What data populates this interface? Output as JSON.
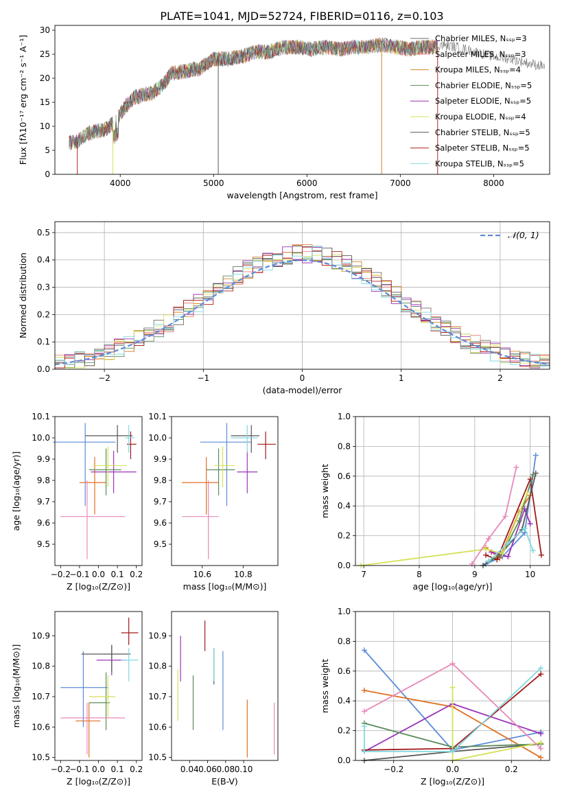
{
  "title": "PLATE=1041, MJD=52724, FIBERID=0116, z=0.103",
  "legend": [
    {
      "label": "Chabrier MILES, Nₛₛₚ=3",
      "color": "#6e6e6e"
    },
    {
      "label": "Salpeter MILES, Nₛₛₚ=3",
      "color": "#f08080"
    },
    {
      "label": "Kroupa MILES, Nₛₛₚ=4",
      "color": "#d2862a"
    },
    {
      "label": "Chabrier ELODIE, Nₛₛₚ=5",
      "color": "#5a8a5a"
    },
    {
      "label": "Salpeter ELODIE, Nₛₛₚ=5",
      "color": "#9b30b0"
    },
    {
      "label": "Kroupa ELODIE, Nₛₛₚ=4",
      "color": "#d4e157"
    },
    {
      "label": "Chabrier STELIB, Nₛₛₚ=5",
      "color": "#555555"
    },
    {
      "label": "Salpeter STELIB, Nₛₛₚ=5",
      "color": "#b22222"
    },
    {
      "label": "Kroupa STELIB, Nₛₛₚ=5",
      "color": "#80d8e0"
    }
  ],
  "panel_colors": [
    "#5b8bd9",
    "#e07020",
    "#9933bb",
    "#a01818",
    "#555555",
    "#5a8a5a",
    "#d4e157",
    "#e888b8",
    "#80d8e0"
  ],
  "chart_data": [
    {
      "id": "spectrum",
      "type": "line",
      "xlabel": "wavelength [Angstrom, rest frame]",
      "ylabel": "Flux [fλ10⁻¹⁷ erg cm⁻² s⁻¹ A⁻¹]",
      "xlim": [
        3300,
        8600
      ],
      "ylim": [
        0,
        31
      ],
      "xticks": [
        4000,
        5000,
        6000,
        7000,
        8000
      ],
      "yticks": [
        0,
        5,
        10,
        15,
        20,
        25,
        30
      ],
      "x": [
        3450,
        3550,
        3650,
        3750,
        3850,
        3950,
        4050,
        4150,
        4250,
        4350,
        4450,
        4550,
        4700,
        4850,
        5000,
        5150,
        5300,
        5450,
        5600,
        5750,
        5900,
        6050,
        6200,
        6350,
        6500,
        6650,
        6800,
        6950,
        7100,
        7250,
        7400
      ],
      "y": [
        6.5,
        7.0,
        8.5,
        9.0,
        9.5,
        11.0,
        14.0,
        16.0,
        16.5,
        17.0,
        18.5,
        21.0,
        21.5,
        22.0,
        24.0,
        24.0,
        24.5,
        25.5,
        25.5,
        26.5,
        26.5,
        26.0,
        26.5,
        26.0,
        26.5,
        26.5,
        27.0,
        26.5,
        26.0,
        26.5,
        26.5
      ],
      "grey_tail": {
        "x": [
          7400,
          7600,
          7800,
          8000,
          8200,
          8400,
          8550
        ],
        "y": [
          27.0,
          26.5,
          25.5,
          24.5,
          24.0,
          23.0,
          22.5
        ]
      }
    },
    {
      "id": "residual-histogram",
      "type": "bar",
      "xlabel": "(data-model)/error",
      "ylabel": "Normed distribution",
      "xlim": [
        -2.5,
        2.5
      ],
      "ylim": [
        0,
        0.54
      ],
      "xticks": [
        -2,
        -1,
        0,
        1,
        2
      ],
      "yticks": [
        0.0,
        0.1,
        0.2,
        0.3,
        0.4,
        0.5
      ],
      "bin_width": 0.1,
      "curve_label": "𝒩(0, 1)"
    },
    {
      "id": "age-vs-Z",
      "type": "scatter",
      "xlabel": "Z [log₁₀(Z/Z⊙)]",
      "ylabel": "age  [log₁₀(age/yr)]",
      "xlim": [
        -0.23,
        0.23
      ],
      "ylim": [
        9.4,
        10.1
      ],
      "xticks": [
        -0.2,
        -0.1,
        0.0,
        0.1,
        0.2
      ],
      "yticks": [
        9.5,
        9.6,
        9.7,
        9.8,
        9.9,
        10.0,
        10.1
      ],
      "points": [
        {
          "x": -0.07,
          "y": 9.98,
          "xerr": [
            0.17,
            0.16
          ],
          "yerr": [
            0.3,
            0.09
          ],
          "c": 0
        },
        {
          "x": -0.02,
          "y": 9.79,
          "xerr": [
            0.08,
            0.06
          ],
          "yerr": [
            0.15,
            0.12
          ],
          "c": 1
        },
        {
          "x": 0.08,
          "y": 9.84,
          "xerr": [
            0.12,
            0.12
          ],
          "yerr": [
            0.1,
            0.1
          ],
          "c": 2
        },
        {
          "x": 0.17,
          "y": 9.97,
          "xerr": [
            0.02,
            0.03
          ],
          "yerr": [
            0.07,
            0.06
          ],
          "c": 3
        },
        {
          "x": 0.1,
          "y": 10.01,
          "xerr": [
            0.17,
            0.08
          ],
          "yerr": [
            0.08,
            0.05
          ],
          "c": 4
        },
        {
          "x": 0.04,
          "y": 9.85,
          "xerr": [
            0.09,
            0.08
          ],
          "yerr": [
            0.12,
            0.1
          ],
          "c": 5
        },
        {
          "x": 0.05,
          "y": 9.87,
          "xerr": [
            0.08,
            0.1
          ],
          "yerr": [
            0.1,
            0.09
          ],
          "c": 6
        },
        {
          "x": -0.06,
          "y": 9.63,
          "xerr": [
            0.14,
            0.2
          ],
          "yerr": [
            0.2,
            0.17
          ],
          "c": 7
        },
        {
          "x": 0.16,
          "y": 10.0,
          "xerr": [
            0.02,
            0.03
          ],
          "yerr": [
            0.07,
            0.06
          ],
          "c": 8
        }
      ]
    },
    {
      "id": "age-vs-mass",
      "type": "scatter",
      "xlabel": "mass [log₁₀(M/M⊙)]",
      "ylabel": "",
      "xlim": [
        10.45,
        10.97
      ],
      "ylim": [
        9.4,
        10.1
      ],
      "xticks": [
        10.6,
        10.8
      ],
      "yticks": [
        9.5,
        9.6,
        9.7,
        9.8,
        9.9,
        10.0,
        10.1
      ],
      "points": [
        {
          "x": 10.72,
          "y": 9.98,
          "xerr": [
            0.13,
            0.12
          ],
          "yerr": [
            0.3,
            0.09
          ],
          "c": 0
        },
        {
          "x": 10.62,
          "y": 9.79,
          "xerr": [
            0.12,
            0.06
          ],
          "yerr": [
            0.15,
            0.12
          ],
          "c": 1
        },
        {
          "x": 10.82,
          "y": 9.84,
          "xerr": [
            0.05,
            0.05
          ],
          "yerr": [
            0.1,
            0.1
          ],
          "c": 2
        },
        {
          "x": 10.91,
          "y": 9.97,
          "xerr": [
            0.04,
            0.05
          ],
          "yerr": [
            0.07,
            0.06
          ],
          "c": 3
        },
        {
          "x": 10.84,
          "y": 10.01,
          "xerr": [
            0.1,
            0.04
          ],
          "yerr": [
            0.08,
            0.05
          ],
          "c": 4
        },
        {
          "x": 10.68,
          "y": 9.85,
          "xerr": [
            0.06,
            0.08
          ],
          "yerr": [
            0.12,
            0.1
          ],
          "c": 5
        },
        {
          "x": 10.7,
          "y": 9.87,
          "xerr": [
            0.04,
            0.06
          ],
          "yerr": [
            0.1,
            0.09
          ],
          "c": 6
        },
        {
          "x": 10.63,
          "y": 9.63,
          "xerr": [
            0.13,
            0.05
          ],
          "yerr": [
            0.2,
            0.17
          ],
          "c": 7
        },
        {
          "x": 10.82,
          "y": 10.0,
          "xerr": [
            0.08,
            0.05
          ],
          "yerr": [
            0.07,
            0.06
          ],
          "c": 8
        }
      ]
    },
    {
      "id": "mass-weight-vs-age",
      "type": "line",
      "xlabel": "age  [log₁₀(age/yr)]",
      "ylabel": "mass weight",
      "xlim": [
        6.85,
        10.35
      ],
      "ylim": [
        0,
        1.0
      ],
      "xticks": [
        7,
        8,
        9,
        10
      ],
      "yticks": [
        0.0,
        0.2,
        0.4,
        0.6,
        0.8,
        1.0
      ],
      "series": [
        {
          "c": 0,
          "x": [
            9.2,
            9.5,
            9.9,
            10.1
          ],
          "y": [
            0.01,
            0.06,
            0.22,
            0.74
          ]
        },
        {
          "c": 1,
          "x": [
            9.2,
            9.45,
            9.8,
            10.0
          ],
          "y": [
            0.12,
            0.05,
            0.36,
            0.47
          ]
        },
        {
          "c": 2,
          "x": [
            9.3,
            9.6,
            9.9,
            10.0
          ],
          "y": [
            0.09,
            0.06,
            0.38,
            0.28
          ]
        },
        {
          "c": 3,
          "x": [
            9.2,
            9.4,
            10.0,
            10.2
          ],
          "y": [
            0.07,
            0.04,
            0.58,
            0.07
          ]
        },
        {
          "c": 4,
          "x": [
            9.15,
            9.45,
            9.85,
            10.1
          ],
          "y": [
            0.0,
            0.07,
            0.24,
            0.62
          ]
        },
        {
          "c": 5,
          "x": [
            9.25,
            9.5,
            9.8,
            10.05
          ],
          "y": [
            0.03,
            0.08,
            0.3,
            0.61
          ]
        },
        {
          "c": 6,
          "x": [
            6.95,
            9.2,
            9.5,
            9.95
          ],
          "y": [
            0.0,
            0.11,
            0.08,
            0.49
          ]
        },
        {
          "c": 7,
          "x": [
            8.95,
            9.25,
            9.55,
            9.75
          ],
          "y": [
            0.01,
            0.18,
            0.33,
            0.66
          ]
        },
        {
          "c": 8,
          "x": [
            9.25,
            9.6,
            9.9,
            10.05
          ],
          "y": [
            0.03,
            0.15,
            0.25,
            0.1
          ]
        }
      ]
    },
    {
      "id": "mass-vs-Z",
      "type": "scatter",
      "xlabel": "Z [log₁₀(Z/Z⊙)]",
      "ylabel": "mass [log₁₀(M/M⊙)]",
      "xlim": [
        -0.23,
        0.23
      ],
      "ylim": [
        10.49,
        10.98
      ],
      "xticks": [
        -0.2,
        -0.1,
        0.0,
        0.1,
        0.2
      ],
      "yticks": [
        10.5,
        10.6,
        10.7,
        10.8,
        10.9
      ],
      "points": [
        {
          "x": -0.08,
          "y": 10.73,
          "xerr": [
            0.12,
            0.13
          ],
          "yerr": [
            0.13,
            0.12
          ],
          "c": 0
        },
        {
          "x": -0.05,
          "y": 10.62,
          "xerr": [
            0.07,
            0.06
          ],
          "yerr": [
            0.12,
            0.06
          ],
          "c": 1
        },
        {
          "x": 0.07,
          "y": 10.82,
          "xerr": [
            0.08,
            0.08
          ],
          "yerr": [
            0.05,
            0.05
          ],
          "c": 2
        },
        {
          "x": 0.16,
          "y": 10.91,
          "xerr": [
            0.04,
            0.05
          ],
          "yerr": [
            0.04,
            0.05
          ],
          "c": 3
        },
        {
          "x": 0.07,
          "y": 10.84,
          "xerr": [
            0.16,
            0.1
          ],
          "yerr": [
            0.06,
            0.03
          ],
          "c": 4
        },
        {
          "x": 0.04,
          "y": 10.68,
          "xerr": [
            0.09,
            0.02
          ],
          "yerr": [
            0.09,
            0.1
          ],
          "c": 5
        },
        {
          "x": 0.05,
          "y": 10.7,
          "xerr": [
            0.1,
            0.04
          ],
          "yerr": [
            0.07,
            0.07
          ],
          "c": 6
        },
        {
          "x": -0.06,
          "y": 10.63,
          "xerr": [
            0.14,
            0.2
          ],
          "yerr": [
            0.12,
            0.05
          ],
          "c": 7
        },
        {
          "x": 0.16,
          "y": 10.82,
          "xerr": [
            0.04,
            0.05
          ],
          "yerr": [
            0.07,
            0.04
          ],
          "c": 8
        }
      ]
    },
    {
      "id": "mass-vs-ebv",
      "type": "scatter",
      "xlabel": "E(B-V)",
      "ylabel": "",
      "xlim": [
        0.02,
        0.138
      ],
      "ylim": [
        10.49,
        10.98
      ],
      "xticks": [
        0.04,
        0.06,
        0.08,
        0.1
      ],
      "yticks": [
        10.5,
        10.6,
        10.7,
        10.8,
        10.9
      ],
      "points": [
        {
          "x": 0.077,
          "y": 10.72,
          "yerr": [
            0.13,
            0.13
          ],
          "c": 0
        },
        {
          "x": 0.104,
          "y": 10.6,
          "yerr": [
            0.1,
            0.09
          ],
          "c": 1
        },
        {
          "x": 0.03,
          "y": 10.82,
          "yerr": [
            0.07,
            0.08
          ],
          "c": 2
        },
        {
          "x": 0.057,
          "y": 10.9,
          "yerr": [
            0.05,
            0.05
          ],
          "c": 3
        },
        {
          "x": 0.067,
          "y": 10.8,
          "yerr": [
            0.06,
            0.06
          ],
          "c": 4
        },
        {
          "x": 0.044,
          "y": 10.68,
          "yerr": [
            0.09,
            0.09
          ],
          "c": 5
        },
        {
          "x": 0.027,
          "y": 10.7,
          "yerr": [
            0.08,
            0.09
          ],
          "c": 6
        },
        {
          "x": 0.134,
          "y": 10.6,
          "yerr": [
            0.09,
            0.08
          ],
          "c": 7
        },
        {
          "x": 0.067,
          "y": 10.82,
          "yerr": [
            0.07,
            0.04
          ],
          "c": 8
        }
      ]
    },
    {
      "id": "mass-weight-vs-Z",
      "type": "line",
      "xlabel": "Z [log₁₀(Z/Z⊙)]",
      "ylabel": "mass weight",
      "xlim": [
        -0.33,
        0.33
      ],
      "ylim": [
        0,
        1.0
      ],
      "xticks": [
        -0.2,
        0.0,
        0.2
      ],
      "yticks": [
        0.0,
        0.2,
        0.4,
        0.6,
        0.8,
        1.0
      ],
      "series": [
        {
          "c": 0,
          "x": [
            -0.3,
            0.0,
            0.3
          ],
          "y": [
            0.74,
            0.07,
            0.19
          ]
        },
        {
          "c": 1,
          "x": [
            -0.3,
            0.0,
            0.3
          ],
          "y": [
            0.47,
            0.36,
            0.02
          ]
        },
        {
          "c": 2,
          "x": [
            -0.3,
            0.0,
            0.3
          ],
          "y": [
            0.06,
            0.38,
            0.18
          ]
        },
        {
          "c": 3,
          "x": [
            -0.3,
            0.0,
            0.3
          ],
          "y": [
            0.07,
            0.08,
            0.58
          ]
        },
        {
          "c": 4,
          "x": [
            -0.3,
            0.0,
            0.3
          ],
          "y": [
            0.0,
            0.06,
            0.11
          ]
        },
        {
          "c": 5,
          "x": [
            -0.3,
            0.0,
            0.3
          ],
          "y": [
            0.25,
            0.09,
            0.11
          ]
        },
        {
          "c": 6,
          "x": [
            0.0,
            0.0,
            0.3
          ],
          "y": [
            0.49,
            0.0,
            0.12
          ]
        },
        {
          "c": 7,
          "x": [
            -0.3,
            0.0,
            0.3
          ],
          "y": [
            0.33,
            0.65,
            0.08
          ]
        },
        {
          "c": 8,
          "x": [
            -0.3,
            -0.3,
            0.0,
            0.3
          ],
          "y": [
            0.23,
            0.06,
            0.06,
            0.62
          ]
        }
      ]
    }
  ]
}
